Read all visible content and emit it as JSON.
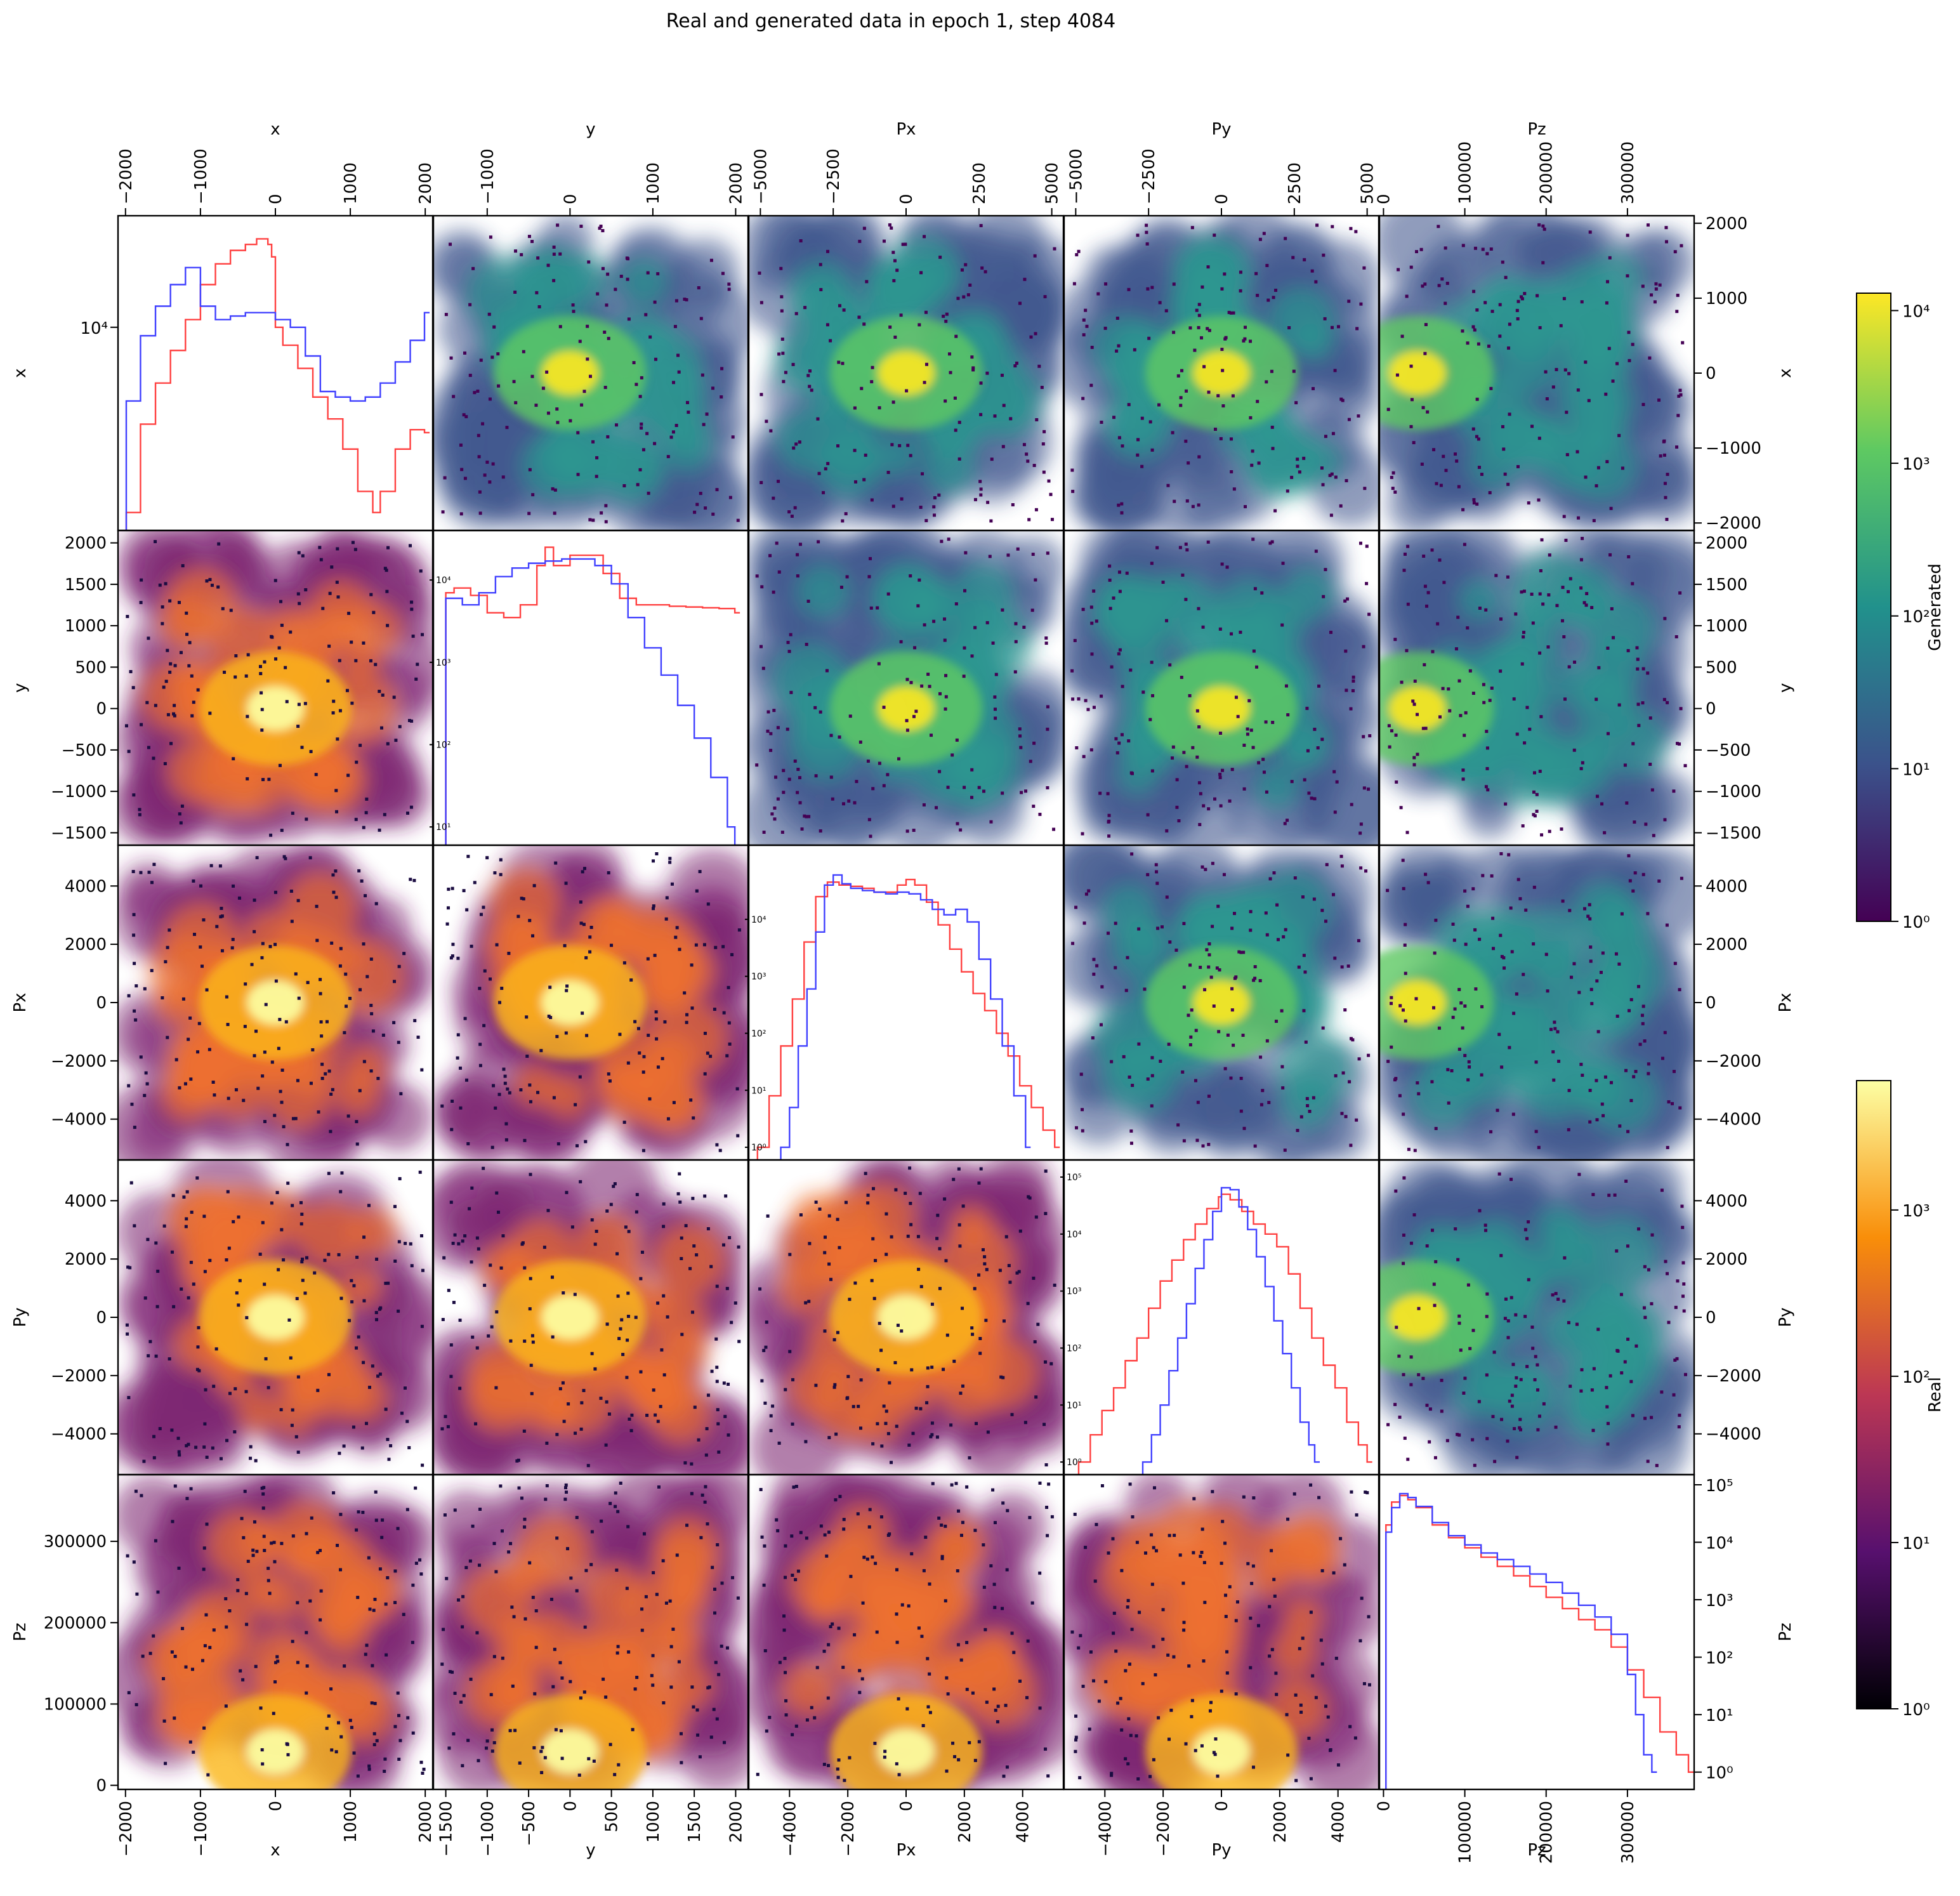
{
  "title": "Real and generated data in epoch 1, step 4084",
  "variables": [
    "x",
    "y",
    "Px",
    "Py",
    "Pz"
  ],
  "colors": {
    "real": "#ff4040",
    "generated": "#4040ff"
  },
  "colorbars": [
    {
      "label": "Generated",
      "colormap": "viridis",
      "scale": "log",
      "min": 1,
      "max": 13000,
      "ticks": [
        {
          "value": 1,
          "label": "10⁰"
        },
        {
          "value": 10,
          "label": "10¹"
        },
        {
          "value": 100,
          "label": "10²"
        },
        {
          "value": 1000,
          "label": "10³"
        },
        {
          "value": 10000,
          "label": "10⁴"
        }
      ]
    },
    {
      "label": "Real",
      "colormap": "inferno",
      "scale": "log",
      "min": 1,
      "max": 6000,
      "ticks": [
        {
          "value": 1,
          "label": "10⁰"
        },
        {
          "value": 10,
          "label": "10¹"
        },
        {
          "value": 100,
          "label": "10²"
        },
        {
          "value": 1000,
          "label": "10³"
        }
      ]
    }
  ],
  "chart_data": {
    "type": "pairplot",
    "description_of_layout": "upper triangle: generated 2D histograms (viridis); lower triangle: real 2D histograms (inferno); diagonal: 1D histograms of real (red) and generated (blue), log y",
    "axes": {
      "x": {
        "range": [
          -2100,
          2100
        ],
        "ticks": [
          -2000,
          -1000,
          0,
          1000,
          2000
        ],
        "labels": [
          "−2000",
          "−1000",
          "0",
          "1000",
          "2000"
        ]
      },
      "y": {
        "range": [
          -1650,
          2150
        ],
        "ticks": [
          -1500,
          -1000,
          -500,
          0,
          500,
          1000,
          1500,
          2000
        ],
        "labels": [
          "−1500",
          "−1000",
          "−500",
          "0",
          "500",
          "1000",
          "1500",
          "2000"
        ],
        "top_ticks": [
          -1000,
          0,
          1000,
          2000
        ],
        "top_labels": [
          "−1000",
          "0",
          "1000",
          "2000"
        ]
      },
      "Px": {
        "range": [
          -5400,
          5400
        ],
        "ticks": [
          -4000,
          -2000,
          0,
          2000,
          4000
        ],
        "labels": [
          "−4000",
          "−2000",
          "0",
          "2000",
          "4000"
        ],
        "top_ticks": [
          -5000,
          -2500,
          0,
          2500,
          5000
        ],
        "top_labels": [
          "−5000",
          "−2500",
          "0",
          "2500",
          "5000"
        ]
      },
      "Py": {
        "range": [
          -5400,
          5400
        ],
        "ticks": [
          -4000,
          -2000,
          0,
          2000,
          4000
        ],
        "labels": [
          "−4000",
          "−2000",
          "0",
          "2000",
          "4000"
        ],
        "top_ticks": [
          -5000,
          -2500,
          0,
          2500,
          5000
        ],
        "top_labels": [
          "−5000",
          "−2500",
          "0",
          "2500",
          "5000"
        ]
      },
      "Pz": {
        "range": [
          -5000,
          382000
        ],
        "ticks": [
          0,
          100000,
          200000,
          300000
        ],
        "labels": [
          "0",
          "100000",
          "200000",
          "300000"
        ]
      }
    },
    "diagonal": [
      {
        "variable": "x",
        "scale": "log",
        "ylim": [
          800,
          40000
        ],
        "yticks": [
          {
            "value": 10000,
            "label": "10⁴"
          }
        ],
        "real": {
          "x": [
            -1990,
            -1800,
            -1600,
            -1400,
            -1200,
            -1000,
            -800,
            -600,
            -400,
            -250,
            -100,
            -50,
            0,
            100,
            300,
            500,
            700,
            900,
            1100,
            1300,
            1400,
            1600,
            1800,
            1990
          ],
          "y": [
            1000,
            3000,
            5000,
            7500,
            11000,
            17000,
            22000,
            26000,
            28000,
            30000,
            28000,
            24000,
            10000,
            8000,
            6000,
            4200,
            3200,
            2200,
            1300,
            1000,
            1300,
            2200,
            2800,
            2700
          ]
        },
        "generated": {
          "x": [
            -1990,
            -1800,
            -1600,
            -1400,
            -1200,
            -1000,
            -800,
            -600,
            -400,
            -200,
            0,
            200,
            400,
            600,
            800,
            1000,
            1200,
            1400,
            1600,
            1800,
            1990
          ],
          "y": [
            4000,
            9000,
            13000,
            17000,
            21000,
            13000,
            11000,
            11500,
            12000,
            12000,
            11000,
            10000,
            7000,
            4500,
            4200,
            4000,
            4200,
            5000,
            6500,
            8500,
            12000
          ]
        }
      },
      {
        "variable": "y",
        "scale": "log",
        "ylim": [
          6,
          40000
        ],
        "yticks": [
          {
            "value": 10,
            "label": "10¹"
          },
          {
            "value": 100,
            "label": "10²"
          },
          {
            "value": 1000,
            "label": "10³"
          },
          {
            "value": 10000,
            "label": "10⁴"
          }
        ],
        "real": {
          "x": [
            -1500,
            -1400,
            -1200,
            -1000,
            -800,
            -600,
            -400,
            -300,
            -200,
            0,
            200,
            400,
            600,
            800,
            1000,
            1200,
            1400,
            1600,
            1800,
            1990
          ],
          "y": [
            7000,
            8000,
            6500,
            4000,
            3500,
            5000,
            15000,
            25000,
            15000,
            20000,
            20000,
            12000,
            6000,
            5000,
            5000,
            4800,
            4700,
            4600,
            4500,
            4000
          ]
        },
        "generated": {
          "x": [
            -1500,
            -1300,
            -1100,
            -900,
            -700,
            -500,
            -300,
            -100,
            100,
            300,
            500,
            700,
            900,
            1100,
            1300,
            1500,
            1700,
            1900,
            1990
          ],
          "y": [
            6000,
            5000,
            7000,
            11000,
            14000,
            16000,
            17000,
            18000,
            18000,
            15000,
            9000,
            3500,
            1500,
            700,
            300,
            120,
            40,
            10,
            5
          ]
        }
      },
      {
        "variable": "Px",
        "scale": "log",
        "ylim": [
          0.6,
          200000
        ],
        "yticks": [
          {
            "value": 1,
            "label": "10⁰"
          },
          {
            "value": 10,
            "label": "10¹"
          },
          {
            "value": 100,
            "label": "10²"
          },
          {
            "value": 1000,
            "label": "10³"
          },
          {
            "value": 10000,
            "label": "10⁴"
          }
        ],
        "real": {
          "x": [
            -5100,
            -4700,
            -4300,
            -3900,
            -3500,
            -3100,
            -2700,
            -2300,
            -1900,
            -1500,
            -1100,
            -700,
            -300,
            0,
            300,
            700,
            1100,
            1500,
            1900,
            2300,
            2700,
            3100,
            3500,
            3900,
            4300,
            4700,
            5100
          ],
          "y": [
            1,
            8,
            60,
            400,
            4000,
            25000,
            45000,
            40000,
            38000,
            35000,
            30000,
            30000,
            40000,
            50000,
            40000,
            20000,
            8000,
            3000,
            1200,
            500,
            250,
            100,
            40,
            12,
            5,
            2,
            1
          ]
        },
        "generated": {
          "x": [
            -4300,
            -4000,
            -3700,
            -3400,
            -3100,
            -2800,
            -2500,
            -2200,
            -1900,
            -1500,
            -1100,
            -700,
            -300,
            100,
            500,
            900,
            1300,
            1700,
            2100,
            2500,
            2900,
            3300,
            3700,
            4100
          ],
          "y": [
            1,
            5,
            60,
            600,
            6000,
            40000,
            60000,
            42000,
            35000,
            32000,
            30000,
            28000,
            30000,
            28000,
            22000,
            15000,
            12000,
            15000,
            9000,
            2000,
            400,
            60,
            8,
            1
          ]
        }
      },
      {
        "variable": "Py",
        "scale": "log",
        "ylim": [
          0.6,
          200000
        ],
        "yticks": [
          {
            "value": 1,
            "label": "10⁰"
          },
          {
            "value": 10,
            "label": "10¹"
          },
          {
            "value": 100,
            "label": "10²"
          },
          {
            "value": 1000,
            "label": "10³"
          },
          {
            "value": 10000,
            "label": "10⁴"
          },
          {
            "value": 100000,
            "label": "10⁵"
          }
        ],
        "real": {
          "x": [
            -4900,
            -4500,
            -4100,
            -3700,
            -3300,
            -2900,
            -2500,
            -2100,
            -1700,
            -1300,
            -900,
            -500,
            -100,
            0,
            300,
            700,
            1100,
            1500,
            1900,
            2300,
            2700,
            3100,
            3500,
            3900,
            4300,
            4700,
            5000
          ],
          "y": [
            1,
            3,
            8,
            20,
            60,
            150,
            500,
            1500,
            3500,
            8000,
            15000,
            28000,
            45000,
            50000,
            40000,
            25000,
            15000,
            10000,
            6000,
            2000,
            500,
            150,
            50,
            20,
            5,
            2,
            1
          ]
        },
        "generated": {
          "x": [
            -2700,
            -2400,
            -2100,
            -1800,
            -1500,
            -1200,
            -900,
            -600,
            -300,
            0,
            300,
            600,
            900,
            1200,
            1500,
            1800,
            2100,
            2400,
            2700,
            3000,
            3200
          ],
          "y": [
            1,
            3,
            10,
            40,
            150,
            600,
            2500,
            8000,
            25000,
            65000,
            60000,
            30000,
            12000,
            4000,
            1200,
            300,
            80,
            20,
            5,
            2,
            1
          ]
        }
      },
      {
        "variable": "Pz",
        "scale": "log",
        "ylim": [
          0.5,
          150000
        ],
        "yticks": [
          {
            "value": 1,
            "label": "10⁰"
          },
          {
            "value": 10,
            "label": "10¹"
          },
          {
            "value": 100,
            "label": "10²"
          },
          {
            "value": 1000,
            "label": "10³"
          },
          {
            "value": 10000,
            "label": "10⁴"
          },
          {
            "value": 100000,
            "label": "10⁵"
          }
        ],
        "real": {
          "x": [
            3000,
            10000,
            20000,
            30000,
            40000,
            60000,
            80000,
            100000,
            120000,
            140000,
            160000,
            180000,
            200000,
            220000,
            240000,
            260000,
            280000,
            300000,
            320000,
            340000,
            360000,
            375000
          ],
          "y": [
            20000,
            50000,
            65000,
            55000,
            40000,
            20000,
            12000,
            8000,
            5500,
            3800,
            2600,
            1700,
            1100,
            700,
            450,
            300,
            150,
            60,
            20,
            5,
            2,
            1
          ]
        },
        "generated": {
          "x": [
            3000,
            10000,
            20000,
            30000,
            40000,
            60000,
            80000,
            100000,
            120000,
            140000,
            160000,
            180000,
            200000,
            220000,
            240000,
            260000,
            280000,
            300000,
            310000,
            320000,
            330000
          ],
          "y": [
            15000,
            40000,
            70000,
            60000,
            42000,
            22000,
            13000,
            9000,
            6500,
            5000,
            3800,
            2800,
            2000,
            1300,
            800,
            500,
            250,
            50,
            10,
            2,
            1
          ]
        }
      }
    ]
  }
}
